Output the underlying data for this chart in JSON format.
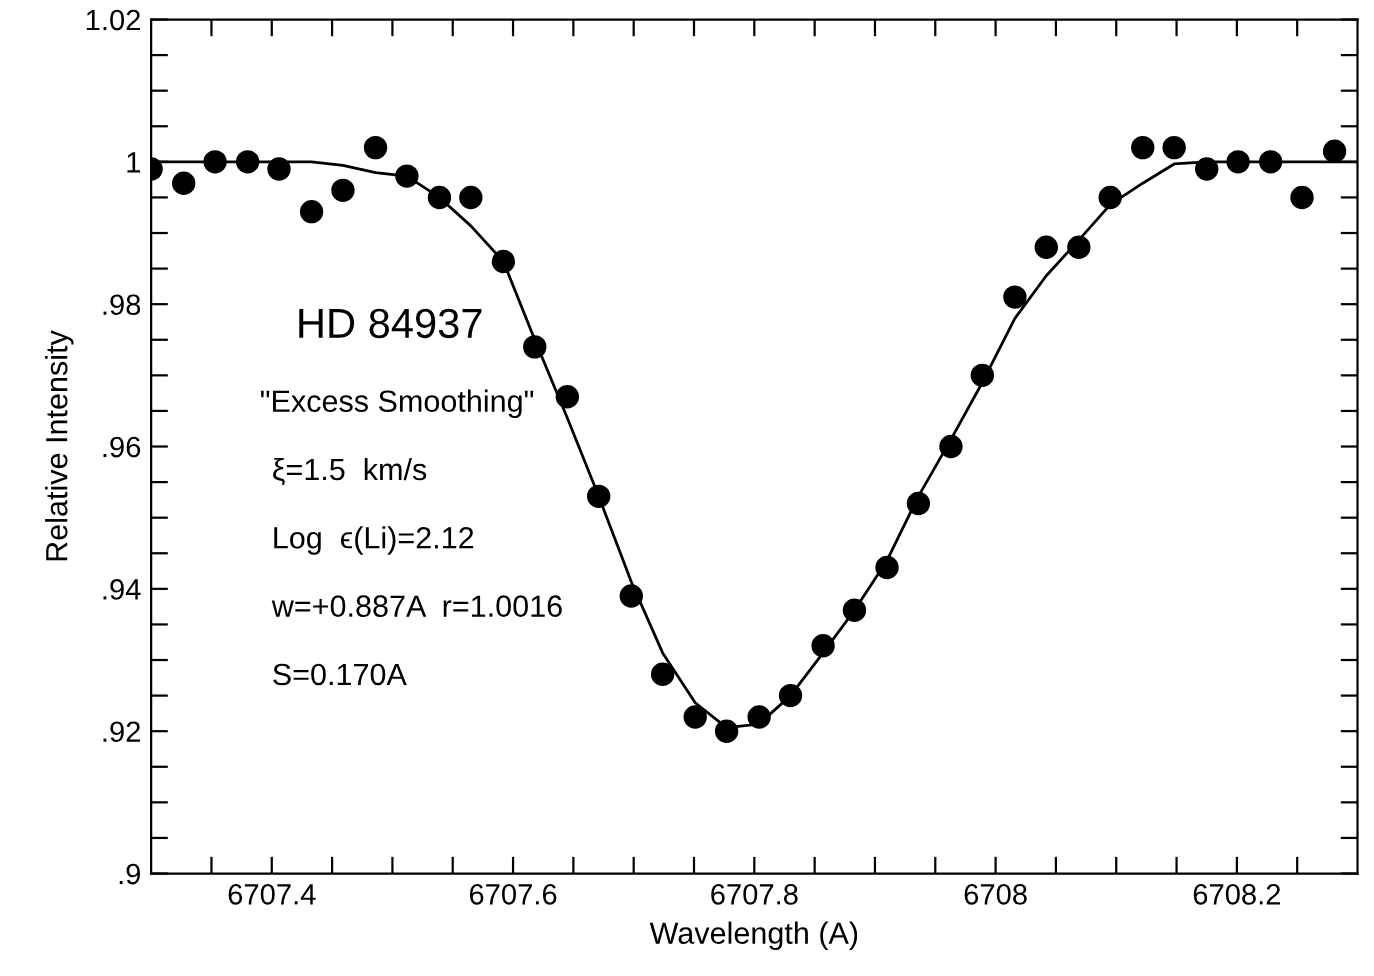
{
  "chart_data": {
    "type": "scatter",
    "xlabel": "Wavelength (A)",
    "ylabel": "Relative Intensity",
    "annotations": [
      "HD 84937",
      "\"Excess Smoothing\"",
      "ξ=1.5  km/s",
      "Log  ϵ(Li)=2.12",
      "w=+0.887A  r=1.0016",
      "S=0.170A"
    ],
    "xlim": [
      6707.3,
      6708.3
    ],
    "ylim": [
      0.9,
      1.02
    ],
    "xticks": [
      {
        "value": 6707.35,
        "label": null
      },
      {
        "value": 6707.4,
        "label": "6707.4"
      },
      {
        "value": 6707.45,
        "label": null
      },
      {
        "value": 6707.5,
        "label": null
      },
      {
        "value": 6707.55,
        "label": null
      },
      {
        "value": 6707.6,
        "label": "6707.6"
      },
      {
        "value": 6707.65,
        "label": null
      },
      {
        "value": 6707.7,
        "label": null
      },
      {
        "value": 6707.75,
        "label": null
      },
      {
        "value": 6707.8,
        "label": "6707.8"
      },
      {
        "value": 6707.85,
        "label": null
      },
      {
        "value": 6707.9,
        "label": null
      },
      {
        "value": 6707.95,
        "label": null
      },
      {
        "value": 6708,
        "label": "6708"
      },
      {
        "value": 6708.05,
        "label": null
      },
      {
        "value": 6708.1,
        "label": null
      },
      {
        "value": 6708.15,
        "label": null
      },
      {
        "value": 6708.2,
        "label": "6708.2"
      },
      {
        "value": 6708.25,
        "label": null
      }
    ],
    "yticks": [
      {
        "value": 0.9,
        "label": ".9"
      },
      {
        "value": 0.905,
        "label": null
      },
      {
        "value": 0.91,
        "label": null
      },
      {
        "value": 0.915,
        "label": null
      },
      {
        "value": 0.92,
        "label": ".92"
      },
      {
        "value": 0.925,
        "label": null
      },
      {
        "value": 0.93,
        "label": null
      },
      {
        "value": 0.935,
        "label": null
      },
      {
        "value": 0.94,
        "label": ".94"
      },
      {
        "value": 0.945,
        "label": null
      },
      {
        "value": 0.95,
        "label": null
      },
      {
        "value": 0.955,
        "label": null
      },
      {
        "value": 0.96,
        "label": ".96"
      },
      {
        "value": 0.965,
        "label": null
      },
      {
        "value": 0.97,
        "label": null
      },
      {
        "value": 0.975,
        "label": null
      },
      {
        "value": 0.98,
        "label": ".98"
      },
      {
        "value": 0.985,
        "label": null
      },
      {
        "value": 0.99,
        "label": null
      },
      {
        "value": 0.995,
        "label": null
      },
      {
        "value": 1,
        "label": "1"
      },
      {
        "value": 1.005,
        "label": null
      },
      {
        "value": 1.01,
        "label": null
      },
      {
        "value": 1.015,
        "label": null
      },
      {
        "value": 1.02,
        "label": "1.02"
      }
    ],
    "grid": false,
    "legend": false,
    "series": [
      {
        "marker": "circle",
        "color": "#000000",
        "x": [
          6707.3,
          6707.327,
          6707.353,
          6707.38,
          6707.406,
          6707.433,
          6707.459,
          6707.486,
          6707.512,
          6707.539,
          6707.565,
          6707.592,
          6707.618,
          6707.645,
          6707.671,
          6707.698,
          6707.724,
          6707.751,
          6707.777,
          6707.804,
          6707.83,
          6707.857,
          6707.883,
          6707.91,
          6707.936,
          6707.963,
          6707.989,
          6708.016,
          6708.042,
          6708.069,
          6708.095,
          6708.122,
          6708.148,
          6708.175,
          6708.201,
          6708.228,
          6708.254,
          6708.281
        ],
        "values": [
          0.999,
          0.997,
          1.0,
          1.0,
          0.999,
          0.993,
          0.996,
          1.002,
          0.998,
          0.995,
          0.995,
          0.986,
          0.974,
          0.967,
          0.953,
          0.939,
          0.928,
          0.922,
          0.92,
          0.922,
          0.925,
          0.932,
          0.937,
          0.943,
          0.952,
          0.96,
          0.97,
          0.981,
          0.988,
          0.988,
          0.995,
          1.002,
          1.002,
          0.999,
          1.0,
          1.0,
          0.995,
          1.0015
        ]
      },
      {
        "type": "line",
        "marker": "none",
        "line_style": "solid",
        "color": "#000000",
        "x": [
          6707.3,
          6707.327,
          6707.353,
          6707.38,
          6707.406,
          6707.433,
          6707.459,
          6707.486,
          6707.512,
          6707.539,
          6707.565,
          6707.592,
          6707.618,
          6707.645,
          6707.671,
          6707.698,
          6707.724,
          6707.751,
          6707.777,
          6707.804,
          6707.83,
          6707.857,
          6707.883,
          6707.91,
          6707.936,
          6707.963,
          6707.989,
          6708.016,
          6708.042,
          6708.069,
          6708.095,
          6708.122,
          6708.148,
          6708.175,
          6708.201,
          6708.228,
          6708.254,
          6708.281,
          6708.3
        ],
        "values": [
          1.0,
          1.0,
          1.0,
          1.0,
          1.0,
          1.0,
          0.9995,
          0.9985,
          0.998,
          0.995,
          0.991,
          0.986,
          0.975,
          0.964,
          0.953,
          0.941,
          0.931,
          0.924,
          0.9205,
          0.921,
          0.925,
          0.931,
          0.937,
          0.944,
          0.953,
          0.961,
          0.969,
          0.978,
          0.984,
          0.989,
          0.994,
          0.997,
          0.9997,
          1.0,
          1.0,
          1.0,
          1.0,
          1.0,
          1.0
        ]
      }
    ]
  }
}
